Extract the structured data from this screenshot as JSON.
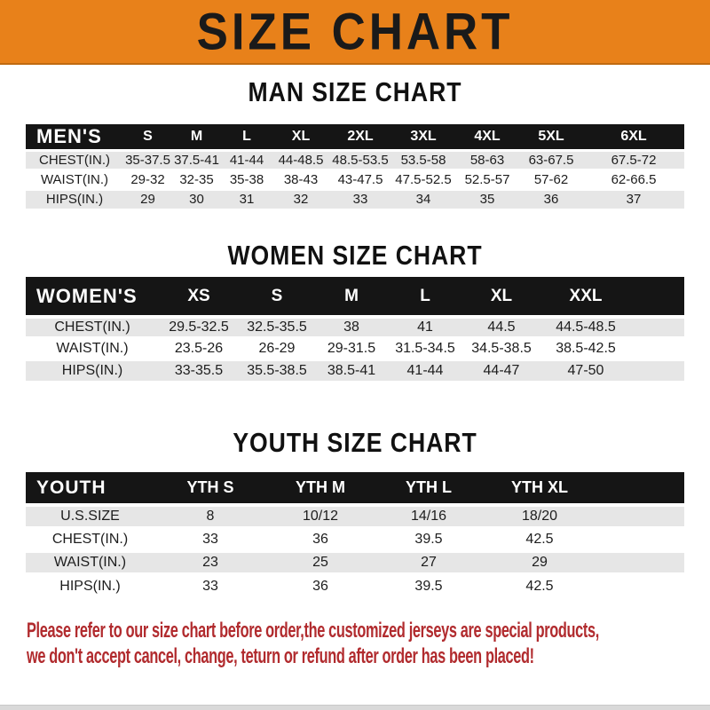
{
  "banner": {
    "title": "SIZE CHART"
  },
  "colors": {
    "banner_orange": "#E8811A",
    "header_black": "#151515",
    "row_gray": "#E6E6E6",
    "note_red": "#B12B2E"
  },
  "sections": {
    "men": {
      "heading": "MAN SIZE CHART",
      "table": {
        "header": [
          "MEN'S",
          "S",
          "M",
          "L",
          "XL",
          "2XL",
          "3XL",
          "4XL",
          "5XL",
          "6XL"
        ],
        "rows": [
          [
            "CHEST(IN.)",
            "35-37.5",
            "37.5-41",
            "41-44",
            "44-48.5",
            "48.5-53.5",
            "53.5-58",
            "58-63",
            "63-67.5",
            "67.5-72"
          ],
          [
            "WAIST(IN.)",
            "29-32",
            "32-35",
            "35-38",
            "38-43",
            "43-47.5",
            "47.5-52.5",
            "52.5-57",
            "57-62",
            "62-66.5"
          ],
          [
            "HIPS(IN.)",
            "29",
            "30",
            "31",
            "32",
            "33",
            "34",
            "35",
            "36",
            "37"
          ]
        ]
      }
    },
    "women": {
      "heading": "WOMEN SIZE CHART",
      "table": {
        "header": [
          "WOMEN'S",
          "XS",
          "S",
          "M",
          "L",
          "XL",
          "XXL"
        ],
        "rows": [
          [
            "CHEST(IN.)",
            "29.5-32.5",
            "32.5-35.5",
            "38",
            "41",
            "44.5",
            "44.5-48.5"
          ],
          [
            "WAIST(IN.)",
            "23.5-26",
            "26-29",
            "29-31.5",
            "31.5-34.5",
            "34.5-38.5",
            "38.5-42.5"
          ],
          [
            "HIPS(IN.)",
            "33-35.5",
            "35.5-38.5",
            "38.5-41",
            "41-44",
            "44-47",
            "47-50"
          ]
        ]
      }
    },
    "youth": {
      "heading": "YOUTH SIZE CHART",
      "table": {
        "header": [
          "YOUTH",
          "YTH S",
          "YTH M",
          "YTH L",
          "YTH XL"
        ],
        "rows": [
          [
            "U.S.SIZE",
            "8",
            "10/12",
            "14/16",
            "18/20"
          ],
          [
            "CHEST(IN.)",
            "33",
            "36",
            "39.5",
            "42.5"
          ],
          [
            "WAIST(IN.)",
            "23",
            "25",
            "27",
            "29"
          ],
          [
            "HIPS(IN.)",
            "33",
            "36",
            "39.5",
            "42.5"
          ]
        ]
      }
    }
  },
  "footer": {
    "line1": "Please refer to our size chart before order,the customized jerseys are special products,",
    "line2": "we don't accept cancel, change, teturn or refund after order has been placed!"
  }
}
